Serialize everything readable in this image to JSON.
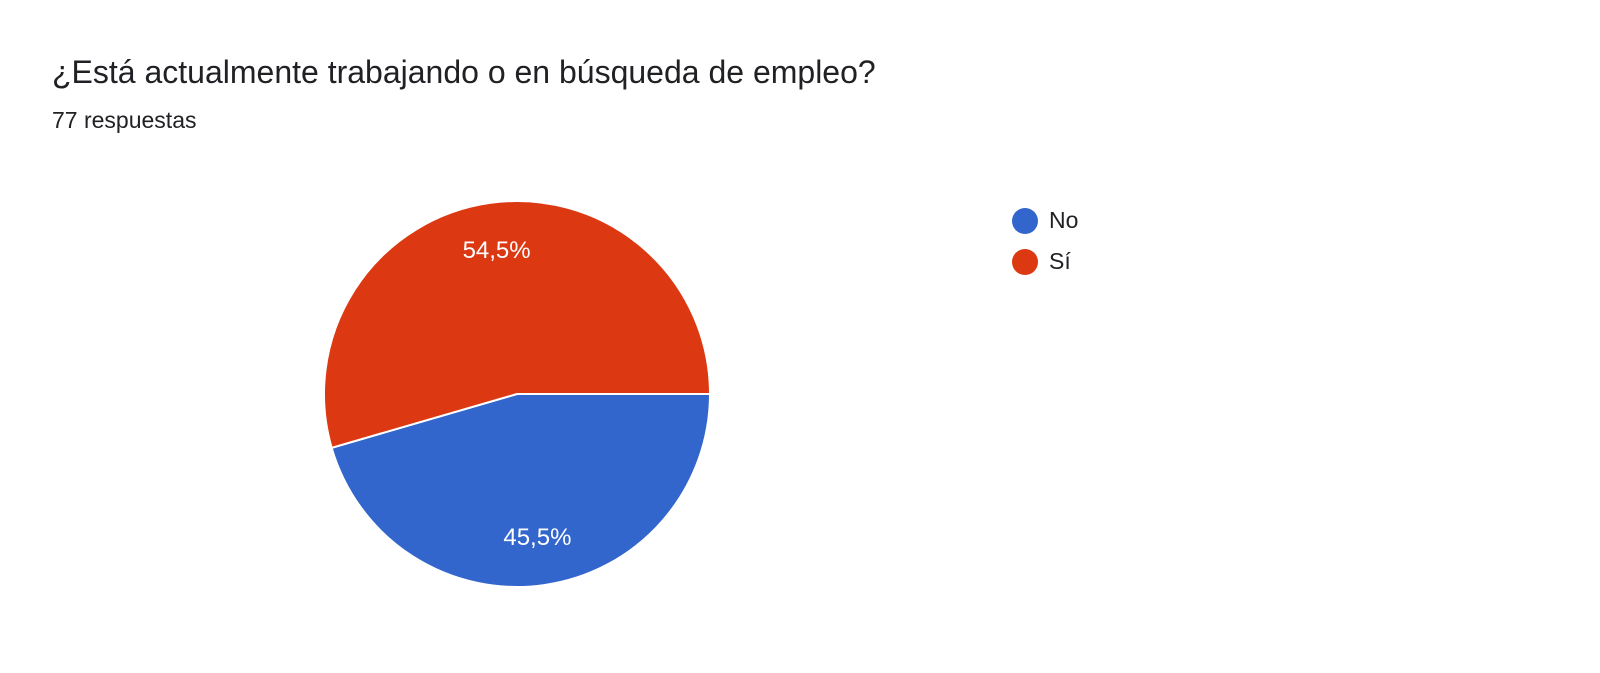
{
  "header": {
    "title": "¿Está actualmente trabajando o en búsqueda de empleo?",
    "subtitle": "77 respuestas"
  },
  "chart_data": {
    "type": "pie",
    "title": "¿Está actualmente trabajando o en búsqueda de empleo?",
    "subtitle": "77 respuestas",
    "categories": [
      "No",
      "Sí"
    ],
    "values": [
      45.5,
      54.5
    ],
    "labels": [
      "45,5%",
      "54,5%"
    ],
    "colors": [
      "#3366cc",
      "#dc3912"
    ],
    "legend": "right"
  }
}
